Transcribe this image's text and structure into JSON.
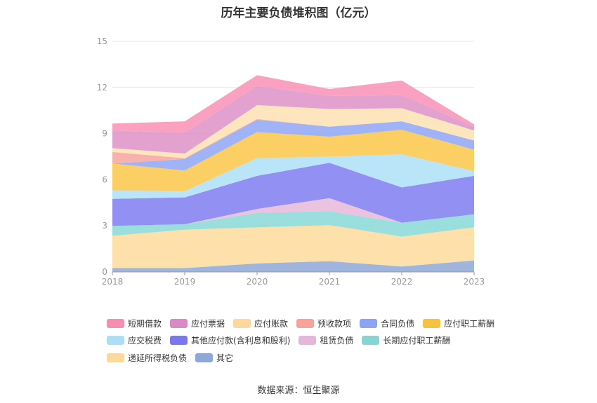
{
  "chart_data": {
    "type": "area",
    "stacked": true,
    "title": "历年主要负债堆积图（亿元）",
    "x": [
      "2018",
      "2019",
      "2020",
      "2021",
      "2022",
      "2023"
    ],
    "ylim": [
      0,
      15
    ],
    "yticks": [
      0,
      3,
      6,
      9,
      12,
      15
    ],
    "grid": true,
    "legend_position": "bottom",
    "series": [
      {
        "name": "其它",
        "color": "#8fa8d8",
        "values": [
          0.25,
          0.25,
          0.55,
          0.7,
          0.35,
          0.75
        ]
      },
      {
        "name": "递延所得税负债",
        "color": "#fddb9b",
        "values": [
          2.1,
          2.5,
          2.35,
          2.35,
          1.95,
          2.15
        ]
      },
      {
        "name": "长期应付职工薪酬",
        "color": "#8ad8d8",
        "values": [
          0.65,
          0.35,
          0.95,
          0.9,
          0.9,
          0.85
        ]
      },
      {
        "name": "租赁负债",
        "color": "#e8b8dc",
        "values": [
          0,
          0,
          0.25,
          0.85,
          0,
          0
        ]
      },
      {
        "name": "其他应付款(含利息和股利)",
        "color": "#7f7cf0",
        "values": [
          1.75,
          1.75,
          2.15,
          2.3,
          2.3,
          2.5
        ]
      },
      {
        "name": "应交税费",
        "color": "#aee0f8",
        "values": [
          0.55,
          0.4,
          1.15,
          0.4,
          2.15,
          0.3
        ]
      },
      {
        "name": "应付职工薪酬",
        "color": "#fbc74a",
        "values": [
          1.75,
          1.35,
          1.7,
          1.3,
          1.6,
          1.4
        ]
      },
      {
        "name": "合同负债",
        "color": "#8ea6f4",
        "values": [
          0,
          0.75,
          0.8,
          0.65,
          0.55,
          0.6
        ]
      },
      {
        "name": "预收款项",
        "color": "#f8a49c",
        "values": [
          0.75,
          0.05,
          0.05,
          0,
          0,
          0
        ]
      },
      {
        "name": "应付账款",
        "color": "#fde0b2",
        "values": [
          0.25,
          0.3,
          0.9,
          1.15,
          0.85,
          0.65
        ]
      },
      {
        "name": "应付票据",
        "color": "#de90c8",
        "values": [
          1.15,
          1.35,
          1.25,
          0.85,
          0.85,
          0.25
        ]
      },
      {
        "name": "短期借款",
        "color": "#f98fb6",
        "values": [
          0.45,
          0.75,
          0.7,
          0.45,
          0.95,
          0.15
        ]
      }
    ]
  },
  "legend": {
    "rows": [
      [
        {
          "name": "短期借款",
          "color": "#f48fb1"
        },
        {
          "name": "应付票据",
          "color": "#d98ac4"
        },
        {
          "name": "应付账款",
          "color": "#fdd89e"
        },
        {
          "name": "预收款项",
          "color": "#f7a39a"
        },
        {
          "name": "合同负债",
          "color": "#8ca4f2"
        },
        {
          "name": "应付职工薪酬",
          "color": "#f7c242"
        }
      ],
      [
        {
          "name": "应交税费",
          "color": "#aadff7"
        },
        {
          "name": "其他应付款(含利息和股利)",
          "color": "#7b78ef"
        },
        {
          "name": "租赁负债",
          "color": "#e6b5da"
        },
        {
          "name": "长期应付职工薪酬",
          "color": "#86d5d5"
        }
      ],
      [
        {
          "name": "递延所得税负债",
          "color": "#fdd89e"
        },
        {
          "name": "其它",
          "color": "#8ea9d8"
        }
      ]
    ]
  },
  "source": "数据来源：恒生聚源"
}
